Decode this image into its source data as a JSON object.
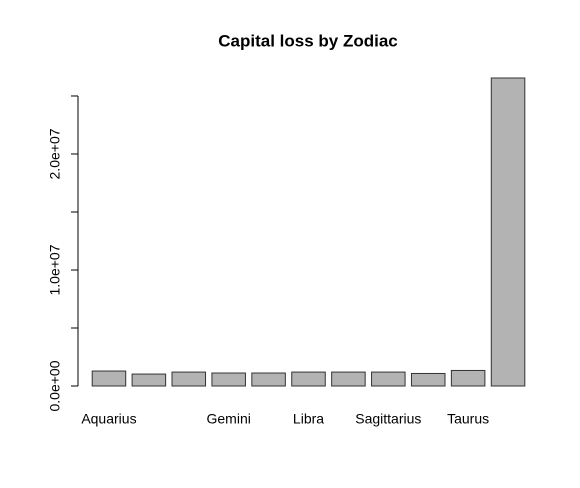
{
  "chart_data": {
    "type": "bar",
    "title": "Capital loss by Zodiac",
    "categories": [
      "Aquarius",
      null,
      null,
      "Gemini",
      null,
      "Libra",
      null,
      "Sagittarius",
      null,
      "Taurus",
      null
    ],
    "values": [
      1290000,
      1030000,
      1200000,
      1120000,
      1120000,
      1200000,
      1200000,
      1200000,
      1080000,
      1340000,
      26550000
    ],
    "color": "#b3b3b3",
    "ylim": [
      0,
      26550000
    ],
    "yticks": [
      {
        "value": 0,
        "label": "0.0e+00"
      },
      {
        "value": 5000000
      },
      {
        "value": 10000000,
        "label": "1.0e+07"
      },
      {
        "value": 15000000
      },
      {
        "value": 20000000,
        "label": "2.0e+07"
      },
      {
        "value": 25000000
      }
    ]
  }
}
